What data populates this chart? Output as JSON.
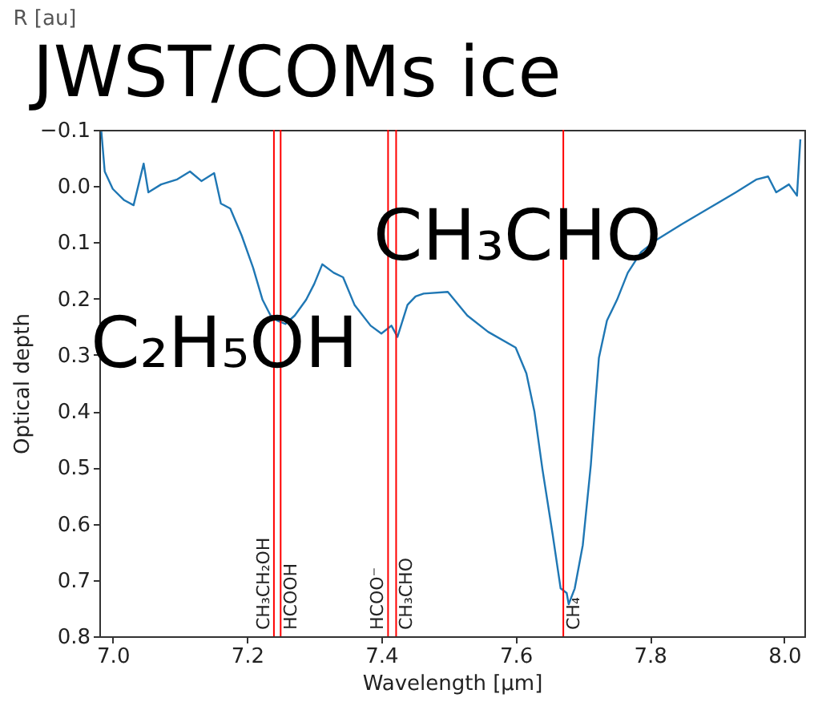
{
  "chart_data": {
    "type": "line",
    "title": "JWST/COMs ice",
    "xlabel": "Wavelength [μm]",
    "ylabel": "Optical depth",
    "annotations": [
      "R [au]",
      "C₂H₅OH",
      "CH₃CHO"
    ],
    "xlim": [
      6.98,
      8.03
    ],
    "ylim": [
      0.8,
      -0.1
    ],
    "xticks": [
      {
        "value": 7,
        "label": "7.0"
      },
      {
        "value": 7.2,
        "label": "7.2"
      },
      {
        "value": 7.4,
        "label": "7.4"
      },
      {
        "value": 7.6,
        "label": "7.6"
      },
      {
        "value": 7.8,
        "label": "7.8"
      },
      {
        "value": 8,
        "label": "8.0"
      }
    ],
    "yticks": [
      {
        "value": -0.1,
        "label": "−0.1"
      },
      {
        "value": 0,
        "label": "0.0"
      },
      {
        "value": 0.1,
        "label": "0.1"
      },
      {
        "value": 0.2,
        "label": "0.2"
      },
      {
        "value": 0.3,
        "label": "0.3"
      },
      {
        "value": 0.4,
        "label": "0.4"
      },
      {
        "value": 0.5,
        "label": "0.5"
      },
      {
        "value": 0.6,
        "label": "0.6"
      },
      {
        "value": 0.7,
        "label": "0.7"
      },
      {
        "value": 0.8,
        "label": "0.8"
      }
    ],
    "x": [
      6.983,
      6.988,
      7.0,
      7.017,
      7.031,
      7.046,
      7.053,
      7.072,
      7.096,
      7.115,
      7.132,
      7.151,
      7.161,
      7.175,
      7.192,
      7.209,
      7.223,
      7.235,
      7.245,
      7.257,
      7.271,
      7.288,
      7.3,
      7.312,
      7.329,
      7.343,
      7.36,
      7.384,
      7.4,
      7.415,
      7.424,
      7.439,
      7.451,
      7.463,
      7.499,
      7.528,
      7.559,
      7.6,
      7.616,
      7.628,
      7.64,
      7.655,
      7.667,
      7.676,
      7.679,
      7.688,
      7.7,
      7.712,
      7.719,
      7.724,
      7.736,
      7.751,
      7.767,
      7.787,
      7.808,
      7.847,
      7.887,
      7.928,
      7.959,
      7.976,
      7.988,
      8.007,
      8.019,
      8.024
    ],
    "series": [
      {
        "color": "#1f77b4",
        "values": [
          -0.097,
          -0.026,
          0.005,
          0.025,
          0.034,
          -0.04,
          0.011,
          -0.003,
          -0.012,
          -0.026,
          -0.009,
          -0.023,
          0.031,
          0.04,
          0.088,
          0.145,
          0.202,
          0.23,
          0.239,
          0.245,
          0.23,
          0.202,
          0.174,
          0.139,
          0.154,
          0.162,
          0.211,
          0.248,
          0.262,
          0.248,
          0.268,
          0.211,
          0.196,
          0.191,
          0.188,
          0.23,
          0.259,
          0.287,
          0.333,
          0.401,
          0.504,
          0.618,
          0.715,
          0.723,
          0.743,
          0.715,
          0.638,
          0.495,
          0.381,
          0.305,
          0.239,
          0.202,
          0.154,
          0.117,
          0.097,
          0.068,
          0.04,
          0.011,
          -0.012,
          -0.017,
          0.011,
          -0.003,
          0.017,
          -0.083
        ]
      }
    ],
    "ref_lines": [
      {
        "axis": "x",
        "value": 7.24,
        "label": "CH₃CH₂OH",
        "color": "#ff0000"
      },
      {
        "axis": "x",
        "value": 7.25,
        "label": "HCOOH",
        "color": "#ff0000"
      },
      {
        "axis": "x",
        "value": 7.41,
        "label": "HCOO⁻",
        "color": "#ff0000"
      },
      {
        "axis": "x",
        "value": 7.422,
        "label": "CH₃CHO",
        "color": "#ff0000"
      },
      {
        "axis": "x",
        "value": 7.671,
        "label": "CH₄",
        "color": "#ff0000"
      }
    ],
    "grid": false,
    "line_style": "solid",
    "marker": "none"
  }
}
